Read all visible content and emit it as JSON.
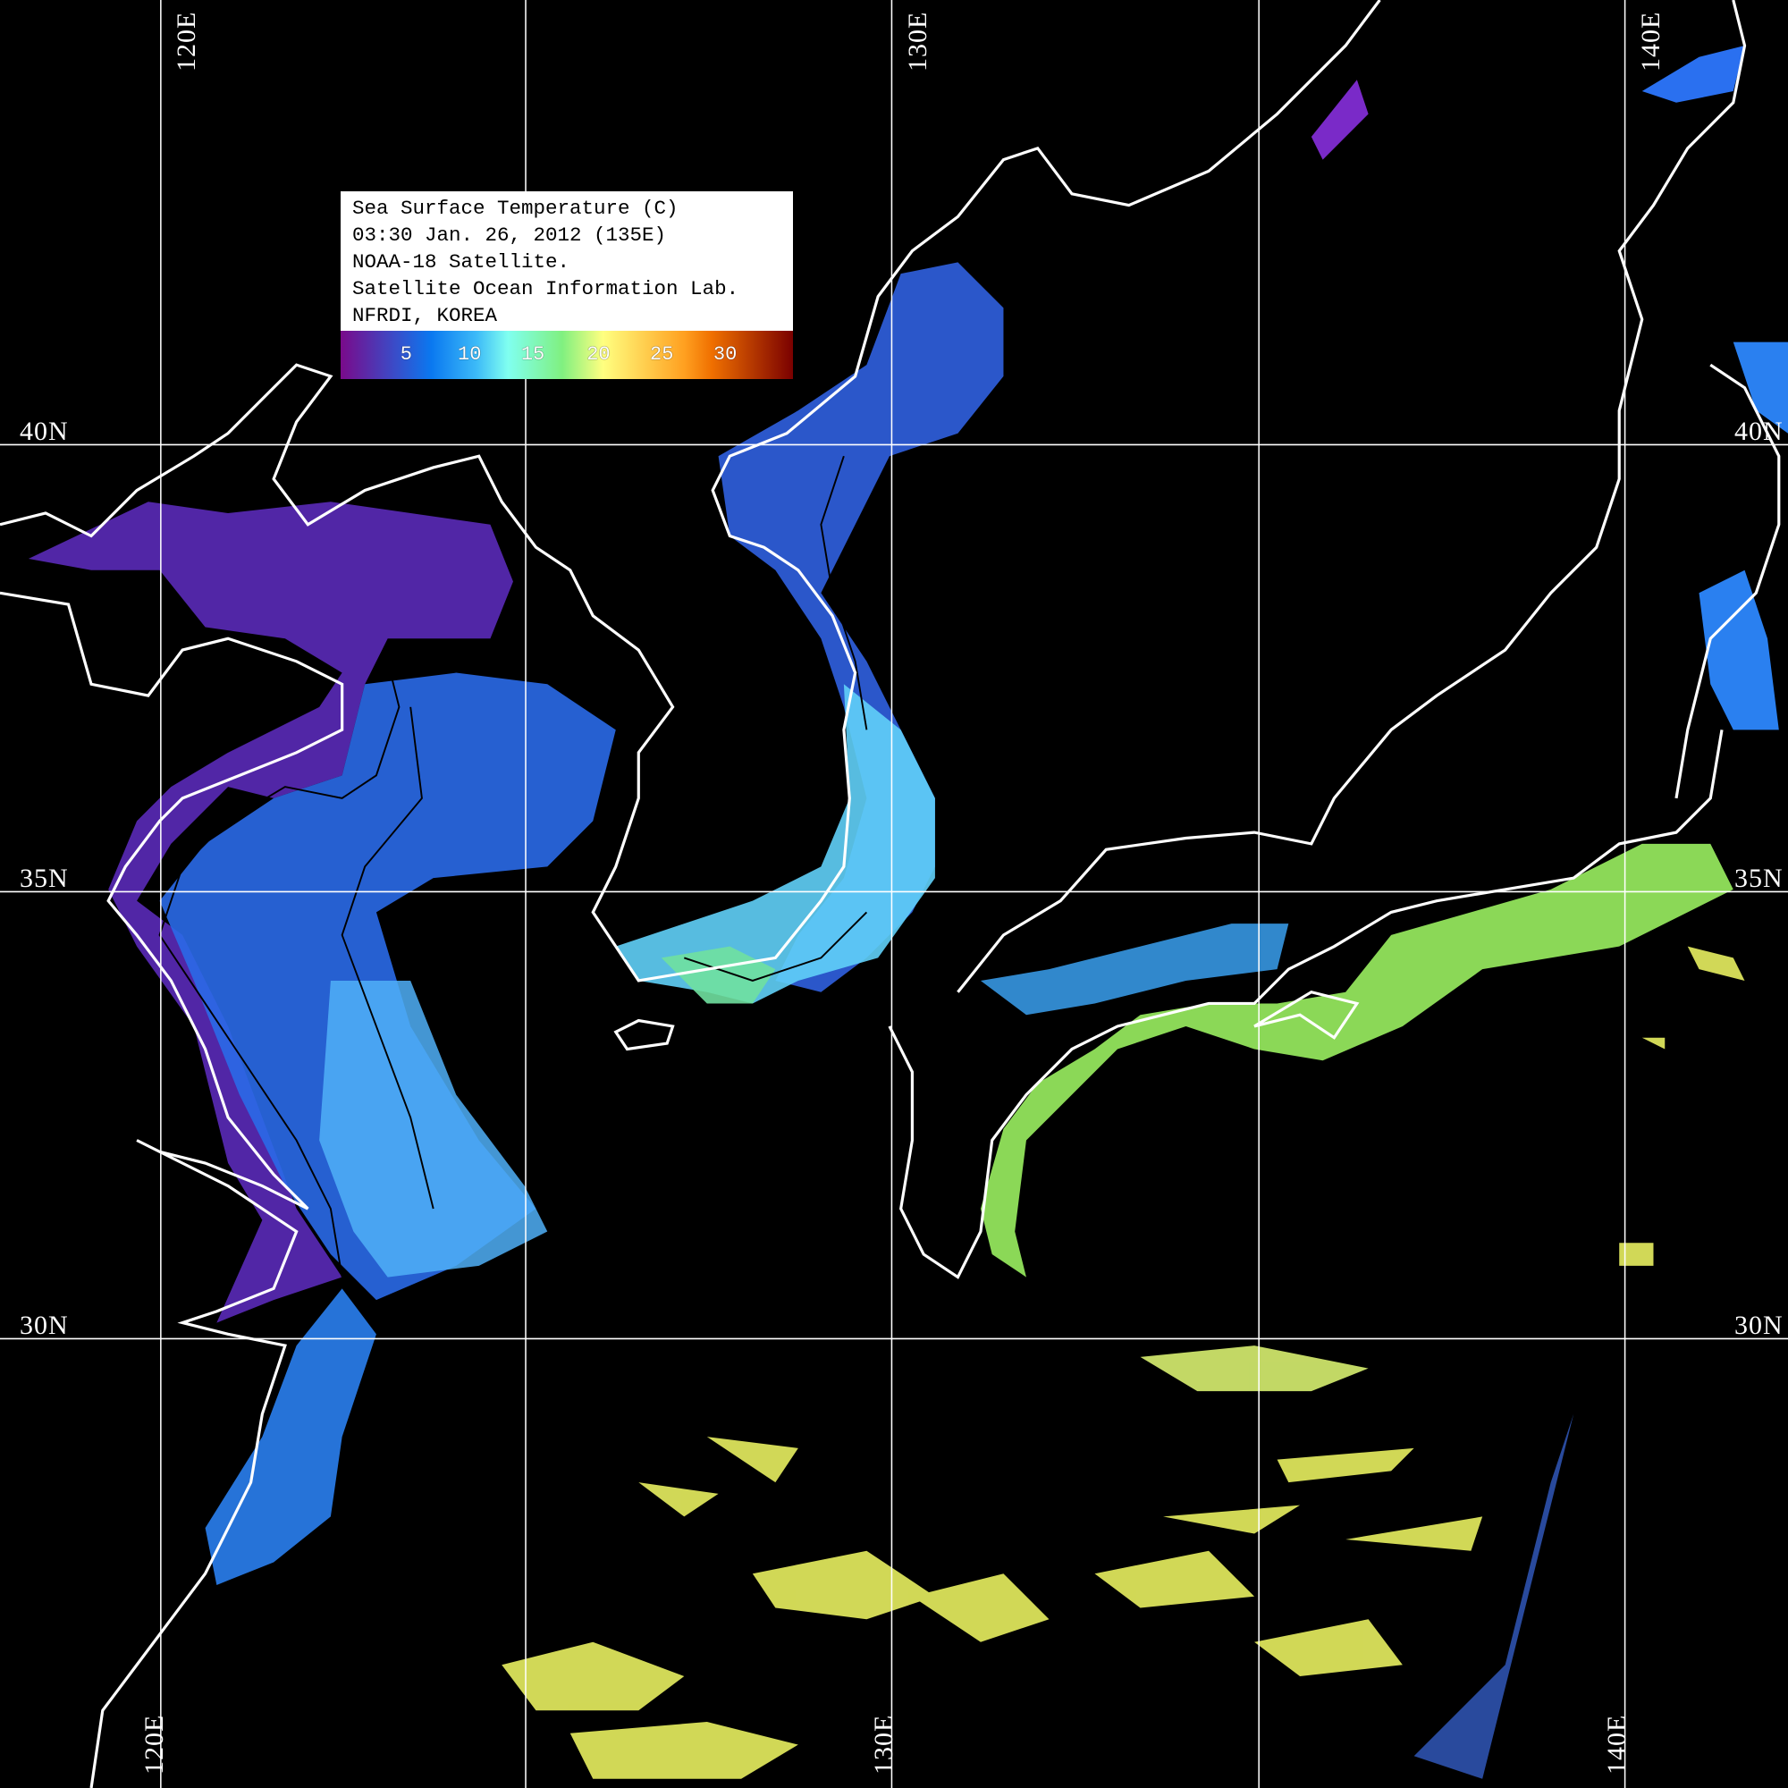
{
  "legend": {
    "lines": [
      "Sea Surface Temperature (C)",
      "03:30 Jan. 26, 2012 (135E)",
      "NOAA-18 Satellite.",
      "Satellite Ocean Information Lab.",
      "NFRDI, KOREA"
    ],
    "colorbar_ticks": [
      "5",
      "10",
      "15",
      "20",
      "25",
      "30"
    ],
    "colorbar_colors": [
      "#7a0a8a",
      "#0a78f0",
      "#80fff0",
      "#80f080",
      "#ffff80",
      "#f07000",
      "#7a0000"
    ]
  },
  "grid": {
    "top_lon_labels": [
      "120E",
      "130E",
      "140E"
    ],
    "bottom_lon_labels": [
      "120E",
      "130E",
      "140E"
    ],
    "lat_labels": [
      "40N",
      "35N",
      "30N"
    ]
  },
  "colors": {
    "background": "#000000",
    "coastline": "#ffffff",
    "gridline": "#ffffff"
  }
}
